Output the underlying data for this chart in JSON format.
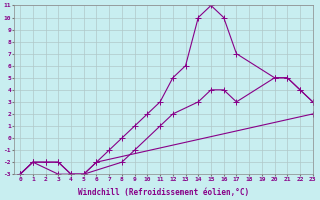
{
  "background_color": "#c8eef0",
  "grid_color": "#b0c8c8",
  "line_color": "#880088",
  "xlim": [
    -0.5,
    23
  ],
  "ylim": [
    -3,
    11
  ],
  "xticks": [
    0,
    1,
    2,
    3,
    4,
    5,
    6,
    7,
    8,
    9,
    10,
    11,
    12,
    13,
    14,
    15,
    16,
    17,
    18,
    19,
    20,
    21,
    22,
    23
  ],
  "yticks": [
    -3,
    -2,
    -1,
    0,
    1,
    2,
    3,
    4,
    5,
    6,
    7,
    8,
    9,
    10,
    11
  ],
  "xlabel": "Windchill (Refroidissement éolien,°C)",
  "line1_x": [
    0,
    1,
    3,
    4,
    5,
    6,
    23
  ],
  "line1_y": [
    -3,
    -2,
    -3,
    -3,
    -3,
    -2,
    2
  ],
  "line2_x": [
    0,
    1,
    2,
    3,
    4,
    5,
    8,
    9,
    11,
    12,
    14,
    15,
    16,
    17,
    20,
    21,
    22,
    23
  ],
  "line2_y": [
    -3,
    -2,
    -2,
    -2,
    -3,
    -3,
    -2,
    -1,
    1,
    2,
    3,
    4,
    4,
    3,
    5,
    5,
    4,
    3
  ],
  "line3_x": [
    0,
    1,
    2,
    3,
    4,
    5,
    6,
    7,
    8,
    9,
    10,
    11,
    12,
    13,
    14,
    15,
    16,
    17,
    20,
    21,
    22,
    23
  ],
  "line3_y": [
    -3,
    -2,
    -2,
    -2,
    -3,
    -3,
    -2,
    -1,
    0,
    1,
    2,
    3,
    5,
    6,
    10,
    11,
    10,
    7,
    5,
    5,
    4,
    3
  ],
  "marker": "+",
  "markersize": 4,
  "linewidth": 0.8,
  "axis_fontsize": 5.5,
  "tick_fontsize": 4.5
}
